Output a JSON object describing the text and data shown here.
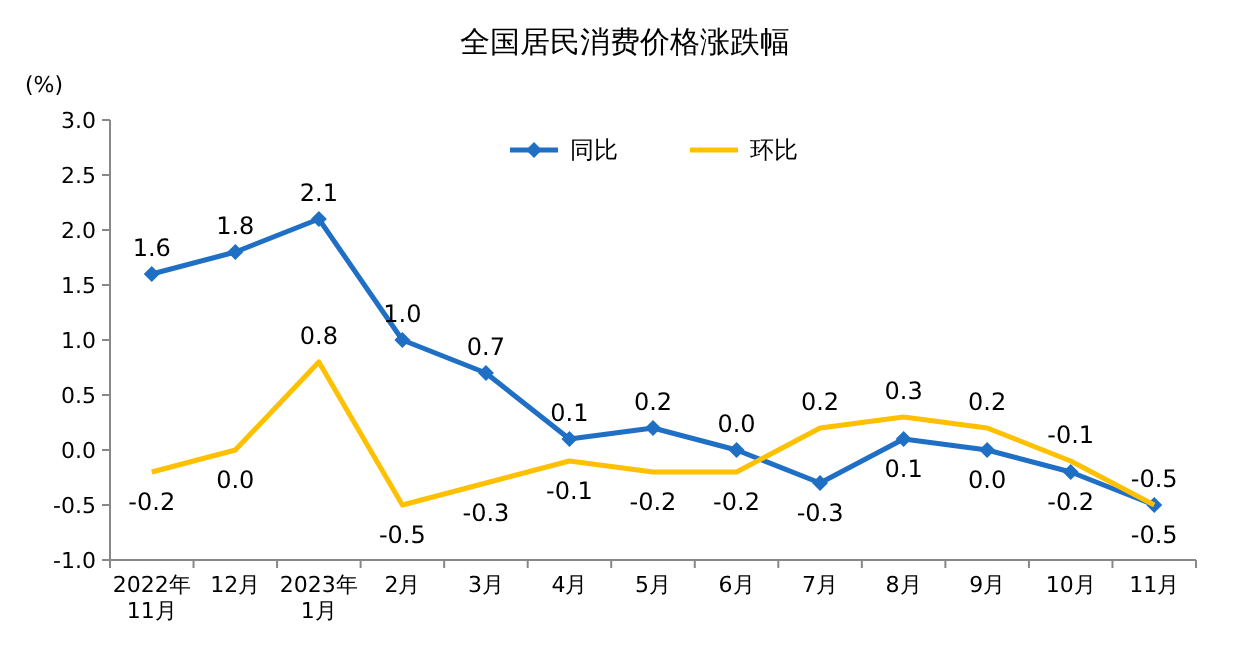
{
  "chart_data": {
    "type": "line",
    "title": "全国居民消费价格涨跌幅",
    "ylabel": "(%)",
    "categories": [
      "2022年\n11月",
      "12月",
      "2023年\n1月",
      "2月",
      "3月",
      "4月",
      "5月",
      "6月",
      "7月",
      "8月",
      "9月",
      "10月",
      "11月"
    ],
    "series": [
      {
        "name": "同比",
        "color": "#1f6fc5",
        "marker": "diamond",
        "values": [
          1.6,
          1.8,
          2.1,
          1.0,
          0.7,
          0.1,
          0.2,
          0.0,
          -0.3,
          0.1,
          0.0,
          -0.2,
          -0.5
        ],
        "value_labels": [
          "1.6",
          "1.8",
          "2.1",
          "1.0",
          "0.7",
          "0.1",
          "0.2",
          "0.0",
          "-0.3",
          "0.1",
          "0.0",
          "-0.2",
          "-0.5"
        ]
      },
      {
        "name": "环比",
        "color": "#ffc000",
        "marker": "none",
        "values": [
          -0.2,
          0.0,
          0.8,
          -0.5,
          -0.3,
          -0.1,
          -0.2,
          -0.2,
          0.2,
          0.3,
          0.2,
          -0.1,
          -0.5
        ],
        "value_labels": [
          "-0.2",
          "0.0",
          "0.8",
          "-0.5",
          "-0.3",
          "-0.1",
          "-0.2",
          "-0.2",
          "0.2",
          "0.3",
          "0.2",
          "-0.1",
          "-0.5"
        ]
      }
    ],
    "ylim": [
      -1,
      3
    ],
    "yticks": [
      {
        "value": -1,
        "label": "-1.0"
      },
      {
        "value": -0.5,
        "label": "-0.5"
      },
      {
        "value": 0,
        "label": "0.0"
      },
      {
        "value": 0.5,
        "label": "0.5"
      },
      {
        "value": 1,
        "label": "1.0"
      },
      {
        "value": 1.5,
        "label": "1.5"
      },
      {
        "value": 2,
        "label": "2.0"
      },
      {
        "value": 2.5,
        "label": "2.5"
      },
      {
        "value": 3,
        "label": "3.0"
      }
    ],
    "legend": "top",
    "grid": false
  }
}
